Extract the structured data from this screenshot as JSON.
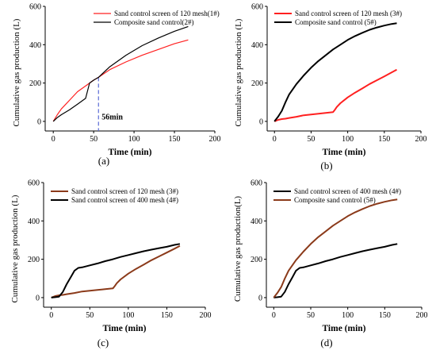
{
  "chart_data": [
    {
      "type": "line",
      "panel_label": "(a)",
      "xlabel": "Time (min)",
      "ylabel": "Cumulative gas production (L)",
      "xlim": [
        -10,
        200
      ],
      "ylim": [
        -50,
        600
      ],
      "x_ticks": [
        "0",
        "50",
        "100",
        "150",
        "200"
      ],
      "y_ticks": [
        "0",
        "200",
        "400",
        "600"
      ],
      "legend_position": "top-right",
      "annotation": "56min",
      "annotation_x": 56,
      "series": [
        {
          "name": "Sand control screen of 120 mesh(1#)",
          "color": "#ff2020",
          "x": [
            0,
            5,
            10,
            20,
            30,
            40,
            45,
            50,
            56,
            70,
            90,
            110,
            130,
            150,
            167
          ],
          "y": [
            0,
            35,
            65,
            110,
            155,
            185,
            200,
            215,
            230,
            270,
            310,
            345,
            375,
            405,
            425
          ]
        },
        {
          "name": "Composite sand control(2#)",
          "color": "#000000",
          "x": [
            0,
            5,
            10,
            20,
            30,
            40,
            45,
            50,
            56,
            70,
            90,
            110,
            130,
            150,
            167
          ],
          "y": [
            0,
            20,
            35,
            60,
            90,
            120,
            200,
            215,
            230,
            285,
            345,
            395,
            435,
            470,
            495
          ]
        }
      ]
    },
    {
      "type": "line",
      "panel_label": "(b)",
      "xlabel": "Time (min)",
      "ylabel": "Cumulative gas production (L)",
      "xlim": [
        -10,
        200
      ],
      "ylim": [
        -50,
        600
      ],
      "x_ticks": [
        "0",
        "50",
        "100",
        "150",
        "200"
      ],
      "y_ticks": [
        "0",
        "200",
        "400",
        "600"
      ],
      "legend_position": "top-right",
      "series": [
        {
          "name": "Sand control screen of 120 mesh (3#)",
          "color": "#ff2020",
          "x": [
            0,
            5,
            10,
            15,
            20,
            30,
            40,
            50,
            60,
            70,
            80,
            82,
            85,
            90,
            100,
            110,
            120,
            130,
            140,
            150,
            160,
            167
          ],
          "y": [
            0,
            8,
            12,
            14,
            18,
            24,
            32,
            36,
            40,
            44,
            48,
            58,
            75,
            95,
            125,
            150,
            172,
            195,
            215,
            235,
            255,
            270
          ]
        },
        {
          "name": "Composite sand control (5#)",
          "color": "#000000",
          "x": [
            0,
            5,
            10,
            15,
            20,
            30,
            40,
            50,
            60,
            70,
            80,
            90,
            100,
            110,
            120,
            130,
            140,
            150,
            160,
            167
          ],
          "y": [
            0,
            25,
            55,
            100,
            140,
            195,
            240,
            280,
            315,
            345,
            375,
            400,
            425,
            445,
            462,
            478,
            490,
            500,
            508,
            512
          ]
        }
      ]
    },
    {
      "type": "line",
      "panel_label": "(c)",
      "xlabel": "Time (min)",
      "ylabel": "Cumulative gas production (L)",
      "xlim": [
        -10,
        200
      ],
      "ylim": [
        -50,
        600
      ],
      "x_ticks": [
        "0",
        "50",
        "100",
        "150",
        "200"
      ],
      "y_ticks": [
        "0",
        "200",
        "400",
        "600"
      ],
      "legend_position": "top-left",
      "series": [
        {
          "name": "Sand control screen of 120 mesh (3#)",
          "color": "#8b3a1a",
          "x": [
            0,
            5,
            10,
            15,
            20,
            30,
            40,
            50,
            60,
            70,
            80,
            82,
            85,
            90,
            100,
            110,
            120,
            130,
            140,
            150,
            160,
            167
          ],
          "y": [
            0,
            8,
            12,
            14,
            18,
            24,
            32,
            36,
            40,
            44,
            48,
            58,
            75,
            95,
            125,
            150,
            172,
            195,
            215,
            235,
            255,
            270
          ]
        },
        {
          "name": "Sand control screen of 400 mesh (4#)",
          "color": "#000000",
          "x": [
            0,
            5,
            10,
            15,
            20,
            25,
            30,
            35,
            40,
            50,
            60,
            70,
            80,
            90,
            100,
            110,
            120,
            130,
            140,
            150,
            160,
            167
          ],
          "y": [
            0,
            2,
            5,
            30,
            70,
            105,
            140,
            155,
            158,
            168,
            178,
            190,
            200,
            212,
            222,
            232,
            242,
            250,
            258,
            265,
            275,
            280
          ]
        }
      ]
    },
    {
      "type": "line",
      "panel_label": "(d)",
      "xlabel": "Time (min)",
      "ylabel": "Cumulative gas production(L)",
      "xlim": [
        -10,
        200
      ],
      "ylim": [
        -50,
        600
      ],
      "x_ticks": [
        "0",
        "50",
        "100",
        "150",
        "200"
      ],
      "y_ticks": [
        "0",
        "200",
        "400",
        "600"
      ],
      "legend_position": "top-left",
      "series": [
        {
          "name": "Sand control screen of 400 mesh (4#)",
          "color": "#000000",
          "x": [
            0,
            5,
            10,
            15,
            20,
            25,
            30,
            35,
            40,
            50,
            60,
            70,
            80,
            90,
            100,
            110,
            120,
            130,
            140,
            150,
            160,
            167
          ],
          "y": [
            0,
            2,
            5,
            30,
            70,
            105,
            140,
            155,
            158,
            168,
            178,
            190,
            200,
            212,
            222,
            232,
            242,
            250,
            258,
            265,
            275,
            280
          ]
        },
        {
          "name": "Composite sand control (5#)",
          "color": "#8b3a1a",
          "x": [
            0,
            5,
            10,
            15,
            20,
            30,
            40,
            50,
            60,
            70,
            80,
            90,
            100,
            110,
            120,
            130,
            140,
            150,
            160,
            167
          ],
          "y": [
            0,
            25,
            55,
            100,
            140,
            195,
            240,
            280,
            315,
            345,
            375,
            400,
            425,
            445,
            462,
            478,
            490,
            500,
            508,
            512
          ]
        }
      ]
    }
  ]
}
